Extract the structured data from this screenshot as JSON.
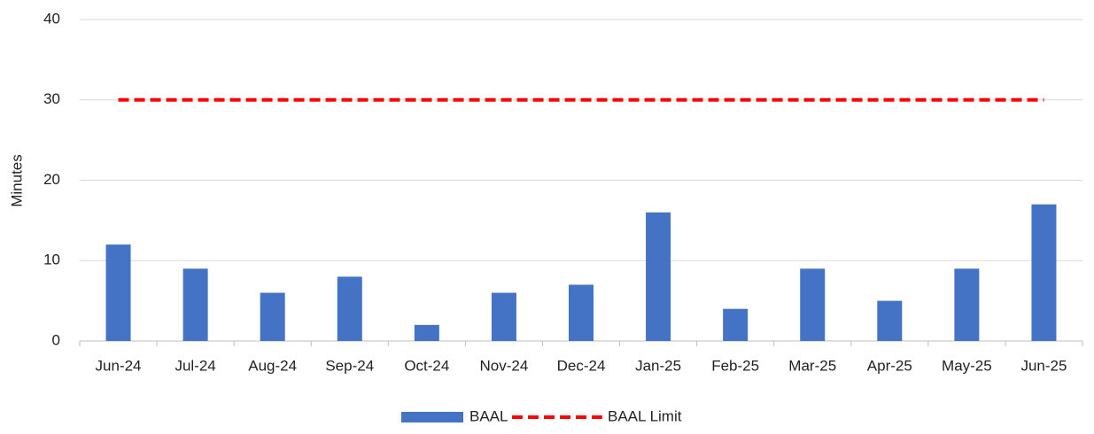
{
  "chart_data": {
    "type": "bar",
    "y_label": "Minutes",
    "categories": [
      "Jun-24",
      "Jul-24",
      "Aug-24",
      "Sep-24",
      "Oct-24",
      "Nov-24",
      "Dec-24",
      "Jan-25",
      "Feb-25",
      "Mar-25",
      "Apr-25",
      "May-25",
      "Jun-25"
    ],
    "series": [
      {
        "name": "BAAL",
        "type": "bar",
        "color": "#4472c4",
        "values": [
          12,
          9,
          6,
          8,
          2,
          6,
          7,
          16,
          4,
          9,
          5,
          9,
          17
        ]
      },
      {
        "name": "BAAL Limit",
        "type": "line",
        "dashed": true,
        "color": "#ff0000",
        "values": [
          30,
          30,
          30,
          30,
          30,
          30,
          30,
          30,
          30,
          30,
          30,
          30,
          30
        ]
      }
    ],
    "ylim": [
      0,
      40
    ],
    "yticks": [
      0,
      10,
      20,
      30,
      40
    ],
    "grid": true,
    "legend": "bottom"
  }
}
